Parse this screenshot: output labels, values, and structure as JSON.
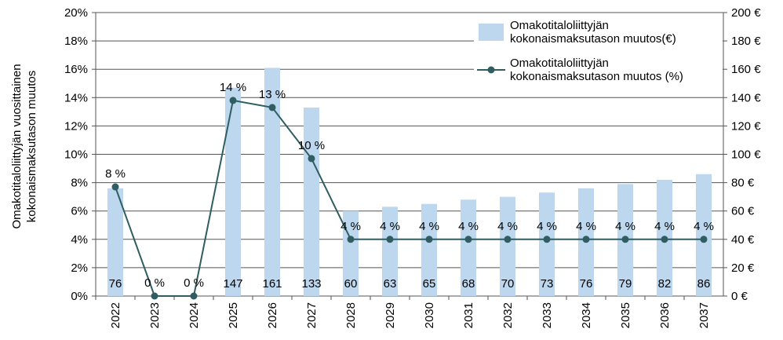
{
  "chart_data": {
    "type": "bar-line",
    "ylabel": [
      "Omakotitaloliittyjän vuosittainen",
      "kokonaismaksutason muutos"
    ],
    "categories": [
      "2022",
      "2023",
      "2024",
      "2025",
      "2026",
      "2027",
      "2028",
      "2029",
      "2030",
      "2031",
      "2032",
      "2033",
      "2034",
      "2035",
      "2036",
      "2037"
    ],
    "series": [
      {
        "name": "Omakotitaloliittyjän kokonaismaksutason muutos(€)",
        "type": "bar",
        "axis": "y2",
        "color": "#bdd7ee",
        "values": [
          76,
          null,
          null,
          147,
          161,
          133,
          60,
          63,
          65,
          68,
          70,
          73,
          76,
          79,
          82,
          86
        ]
      },
      {
        "name": "Omakotitaloliittyjän kokonaismaksutason muutos (%)",
        "type": "line",
        "axis": "y",
        "color": "#2f5d62",
        "values": [
          7.7,
          0,
          0,
          13.8,
          13.3,
          9.7,
          4,
          4,
          4,
          4,
          4,
          4,
          4,
          4,
          4,
          4
        ],
        "value_labels": [
          "8 %",
          "0 %",
          "0 %",
          "14 %",
          "13 %",
          "10 %",
          "4 %",
          "4 %",
          "4 %",
          "4 %",
          "4 %",
          "4 %",
          "4 %",
          "4 %",
          "4 %",
          "4 %"
        ]
      }
    ],
    "ylim": [
      0,
      20
    ],
    "yticks": [
      {
        "value": 0,
        "label": "0%"
      },
      {
        "value": 2,
        "label": "2%"
      },
      {
        "value": 4,
        "label": "4%"
      },
      {
        "value": 6,
        "label": "6%"
      },
      {
        "value": 8,
        "label": "8%"
      },
      {
        "value": 10,
        "label": "10%"
      },
      {
        "value": 12,
        "label": "12%"
      },
      {
        "value": 14,
        "label": "14%"
      },
      {
        "value": 16,
        "label": "16%"
      },
      {
        "value": 18,
        "label": "18%"
      },
      {
        "value": 20,
        "label": "20%"
      }
    ],
    "y2lim": [
      0,
      200
    ],
    "y2ticks": [
      {
        "value": 0,
        "label": "0 €"
      },
      {
        "value": 20,
        "label": "20 €"
      },
      {
        "value": 40,
        "label": "40 €"
      },
      {
        "value": 60,
        "label": "60 €"
      },
      {
        "value": 80,
        "label": "80 €"
      },
      {
        "value": 100,
        "label": "100 €"
      },
      {
        "value": 120,
        "label": "120 €"
      },
      {
        "value": 140,
        "label": "140 €"
      },
      {
        "value": 160,
        "label": "160 €"
      },
      {
        "value": 180,
        "label": "180 €"
      },
      {
        "value": 200,
        "label": "200 €"
      }
    ],
    "grid": true,
    "legend": "upper right"
  }
}
